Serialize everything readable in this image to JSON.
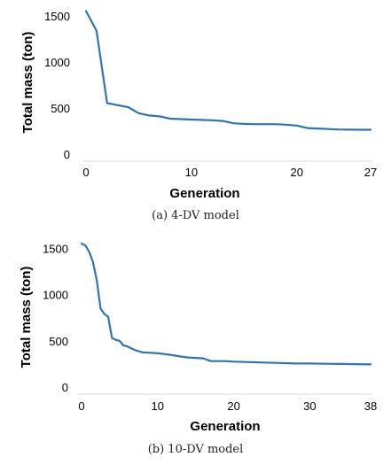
{
  "chart_data": [
    {
      "type": "line",
      "caption": "(a) 4-DV model",
      "xlabel": "Generation",
      "ylabel": "Total mass (ton)",
      "xlim": [
        0,
        27
      ],
      "ylim": [
        0,
        1550
      ],
      "xticks": [
        "0",
        "10",
        "20",
        "27"
      ],
      "xtick_values": [
        0,
        10,
        20,
        27
      ],
      "yticks": [
        "0",
        "500",
        "1000",
        "1500"
      ],
      "ytick_values": [
        0,
        500,
        1000,
        1500
      ],
      "grid": false,
      "line_color": "#2e75b6",
      "series": [
        {
          "x": [
            0,
            1,
            2,
            4,
            5,
            6,
            7,
            8,
            9,
            10,
            11,
            12,
            13,
            14,
            15,
            16,
            17,
            18,
            19,
            20,
            21,
            22,
            23,
            24,
            25,
            26,
            27
          ],
          "y": [
            1555,
            1340,
            555,
            510,
            445,
            420,
            410,
            385,
            380,
            375,
            372,
            368,
            360,
            335,
            328,
            325,
            325,
            325,
            320,
            310,
            283,
            278,
            272,
            268,
            266,
            265,
            265
          ]
        }
      ]
    },
    {
      "type": "line",
      "caption": "(b) 10-DV model",
      "xlabel": "Generation",
      "ylabel": "Total mass (ton)",
      "xlim": [
        0,
        38
      ],
      "ylim": [
        0,
        1560
      ],
      "xticks": [
        "0",
        "10",
        "20",
        "30",
        "38"
      ],
      "xtick_values": [
        0,
        10,
        20,
        30,
        38
      ],
      "yticks": [
        "0",
        "500",
        "1000",
        "1500"
      ],
      "ytick_values": [
        0,
        500,
        1000,
        1500
      ],
      "grid": false,
      "line_color": "#2e75b6",
      "series": [
        {
          "x": [
            0,
            0.5,
            1,
            1.5,
            2,
            2.5,
            3,
            3.5,
            4,
            4.5,
            5,
            5.5,
            6,
            7,
            8,
            9,
            10,
            11,
            12,
            13,
            14,
            15,
            16,
            17,
            18,
            19,
            20,
            22,
            24,
            26,
            28,
            30,
            32,
            34,
            36,
            38
          ],
          "y": [
            1550,
            1530,
            1460,
            1350,
            1150,
            850,
            790,
            760,
            530,
            510,
            500,
            450,
            440,
            400,
            375,
            370,
            365,
            355,
            345,
            330,
            320,
            315,
            310,
            280,
            280,
            280,
            275,
            270,
            265,
            260,
            255,
            255,
            252,
            250,
            248,
            245
          ]
        }
      ]
    }
  ]
}
